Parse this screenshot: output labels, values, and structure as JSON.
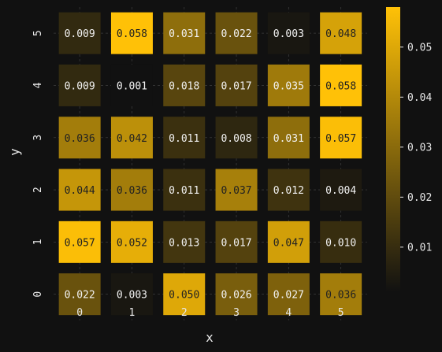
{
  "chart_data": {
    "type": "heatmap",
    "title": "",
    "xlabel": "x",
    "ylabel": "y",
    "x": [
      "0",
      "1",
      "2",
      "3",
      "4",
      "5"
    ],
    "y": [
      "0",
      "1",
      "2",
      "3",
      "4",
      "5"
    ],
    "values": [
      [
        0.022,
        0.003,
        0.05,
        0.026,
        0.027,
        0.036
      ],
      [
        0.057,
        0.052,
        0.013,
        0.017,
        0.047,
        0.01
      ],
      [
        0.044,
        0.036,
        0.011,
        0.037,
        0.012,
        0.004
      ],
      [
        0.036,
        0.042,
        0.011,
        0.008,
        0.031,
        0.057
      ],
      [
        0.009,
        0.001,
        0.018,
        0.017,
        0.035,
        0.058
      ],
      [
        0.009,
        0.058,
        0.031,
        0.022,
        0.003,
        0.048
      ]
    ],
    "value_format": "%.3f",
    "colorbar": {
      "ticks": [
        "0.01",
        "0.02",
        "0.03",
        "0.04",
        "0.05"
      ],
      "range": [
        0.001,
        0.058
      ]
    },
    "colors": {
      "low": "#111111",
      "high": "#ffc107",
      "background": "#111111",
      "grid": "#3a3a3a",
      "text": "#e8e8e8"
    },
    "grid": true,
    "legend": "colorbar-right"
  }
}
